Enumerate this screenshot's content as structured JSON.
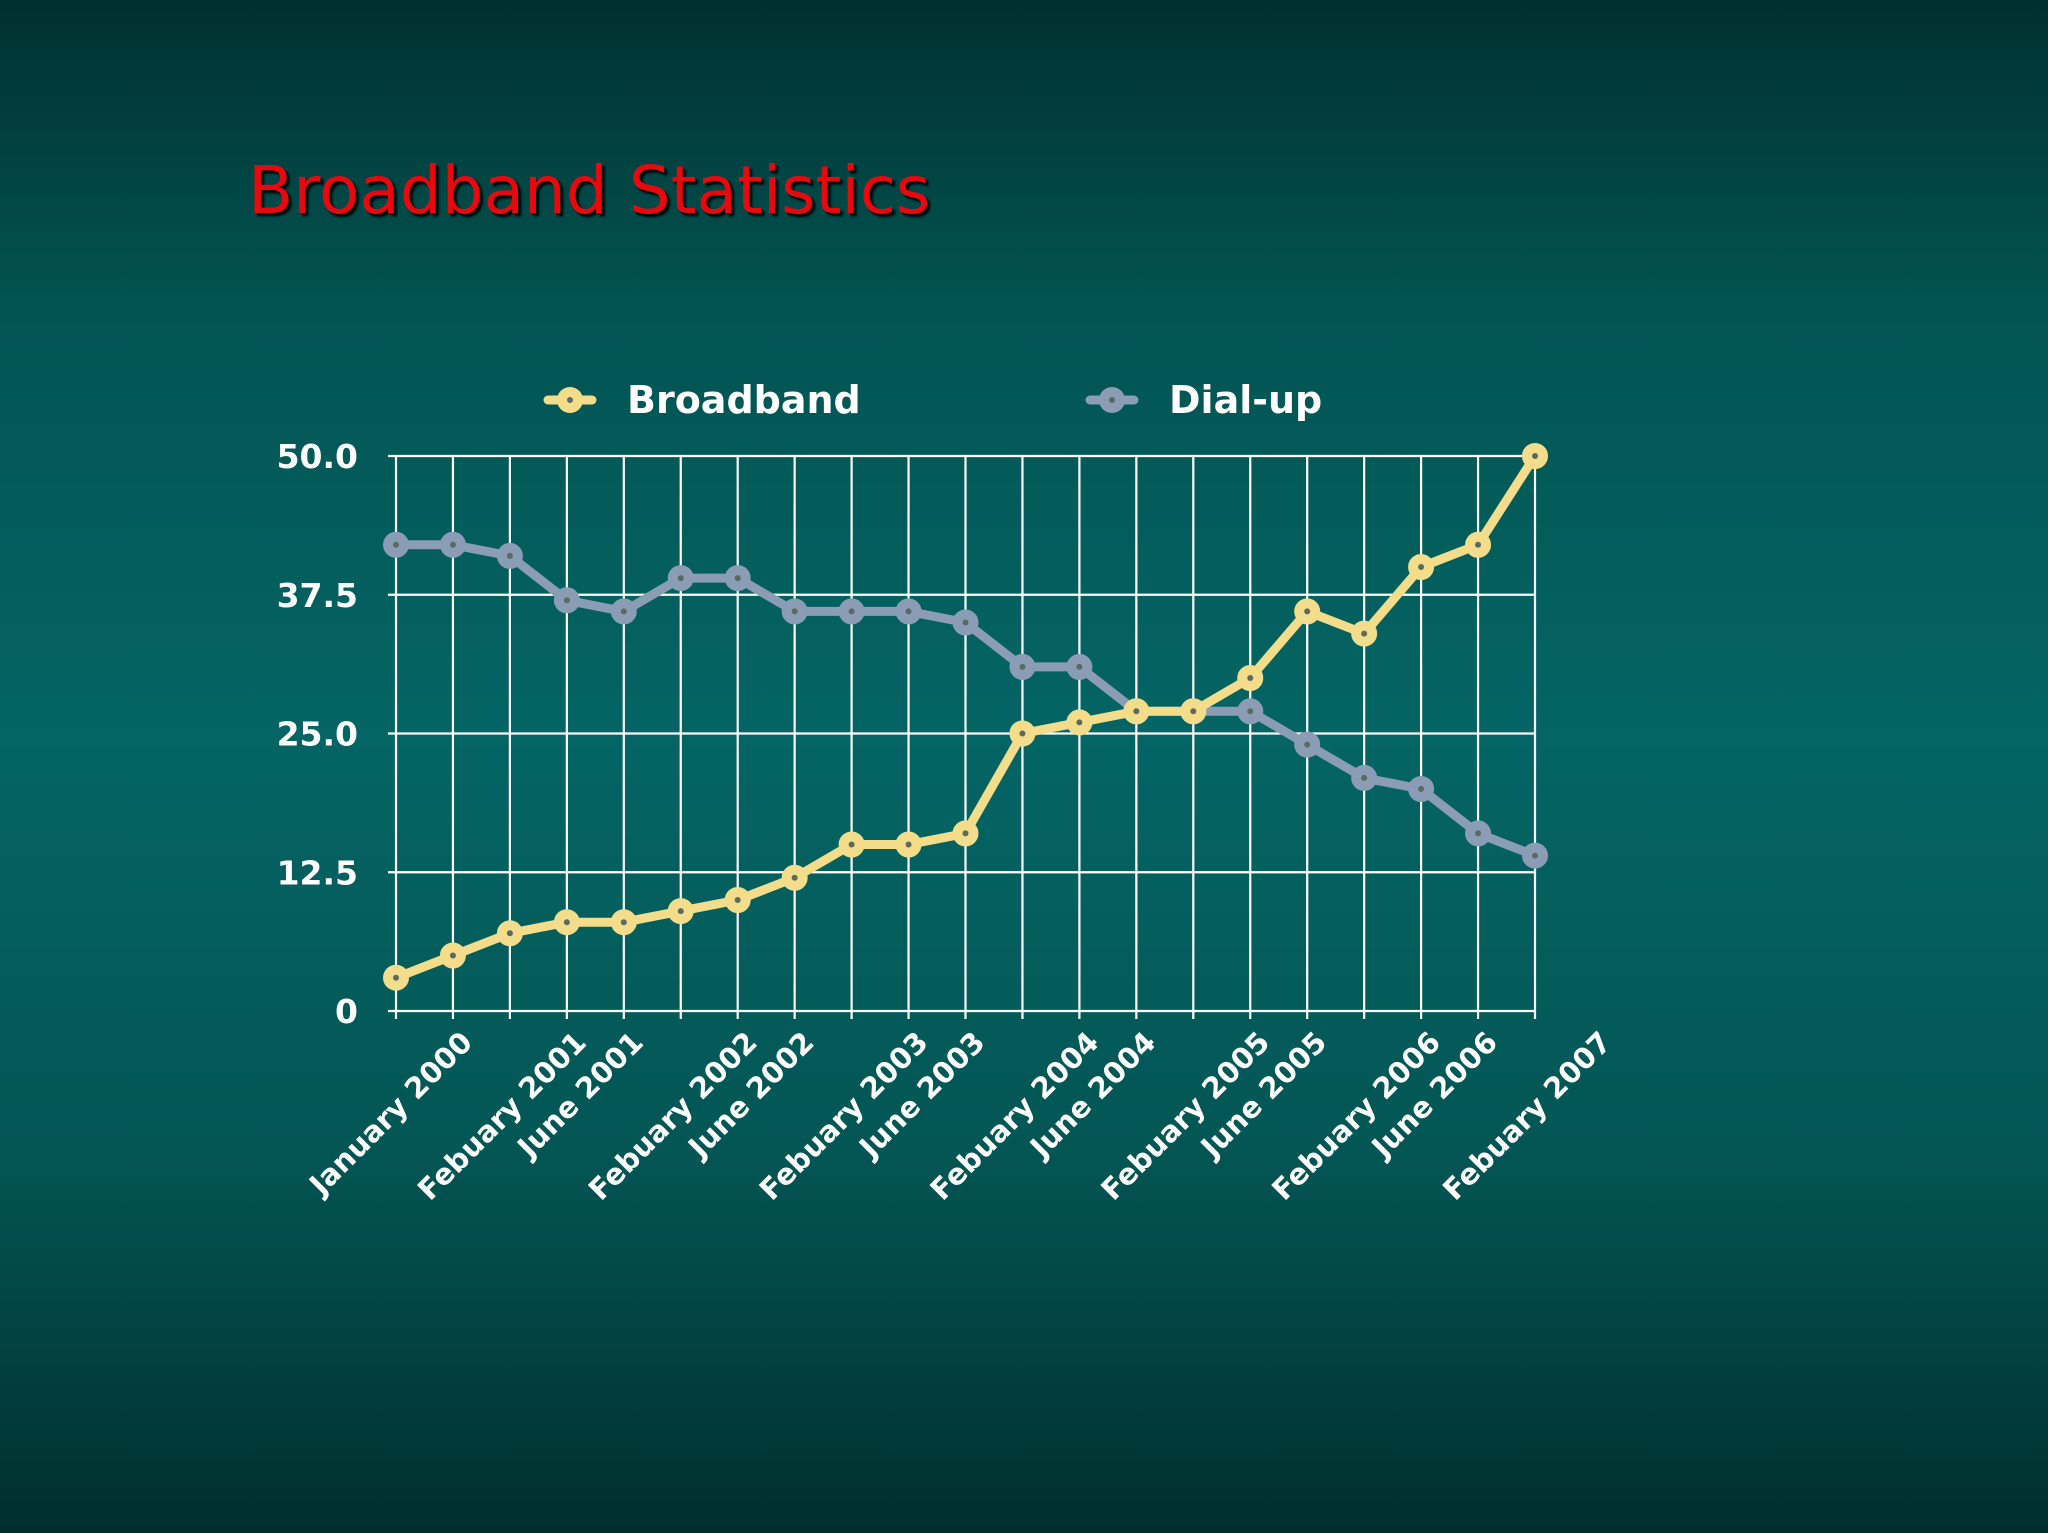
{
  "slide": {
    "title": "Broadband Statistics"
  },
  "chart_data": {
    "type": "line",
    "title": "",
    "xlabel": "",
    "ylabel": "",
    "ylim": [
      0,
      50
    ],
    "yticks": [
      "0",
      "12.5",
      "25.0",
      "37.5",
      "50.0"
    ],
    "ytick_values": [
      0,
      12.5,
      25,
      37.5,
      50
    ],
    "grid": true,
    "legend_position": "top",
    "x_tick_labels": [
      {
        "index": 0,
        "label": "January 2000"
      },
      {
        "index": 2,
        "label": "Febuary 2001"
      },
      {
        "index": 3,
        "label": "June 2001"
      },
      {
        "index": 5,
        "label": "Febuary 2002"
      },
      {
        "index": 6,
        "label": "June 2002"
      },
      {
        "index": 8,
        "label": "Febuary 2003"
      },
      {
        "index": 9,
        "label": "June 2003"
      },
      {
        "index": 11,
        "label": "Febuary 2004"
      },
      {
        "index": 12,
        "label": "June 2004"
      },
      {
        "index": 14,
        "label": "Febuary 2005"
      },
      {
        "index": 15,
        "label": "June 2005"
      },
      {
        "index": 17,
        "label": "Febuary 2006"
      },
      {
        "index": 18,
        "label": "June 2006"
      },
      {
        "index": 20,
        "label": "Febuary 2007"
      }
    ],
    "series": [
      {
        "name": "Broadband",
        "color": "#f3dd8a",
        "values": [
          3,
          5,
          7,
          8,
          8,
          9,
          10,
          12,
          15,
          15,
          16,
          25,
          26,
          27,
          27,
          30,
          36,
          34,
          40,
          42,
          50
        ]
      },
      {
        "name": "Dial-up",
        "color": "#8a9db4",
        "values": [
          42,
          42,
          41,
          37,
          36,
          39,
          39,
          36,
          36,
          36,
          35,
          31,
          31,
          27,
          27,
          27,
          24,
          21,
          20,
          16,
          14
        ]
      }
    ]
  },
  "colors": {
    "title_red": "#e8090f",
    "grid_white": "#ffffff"
  }
}
